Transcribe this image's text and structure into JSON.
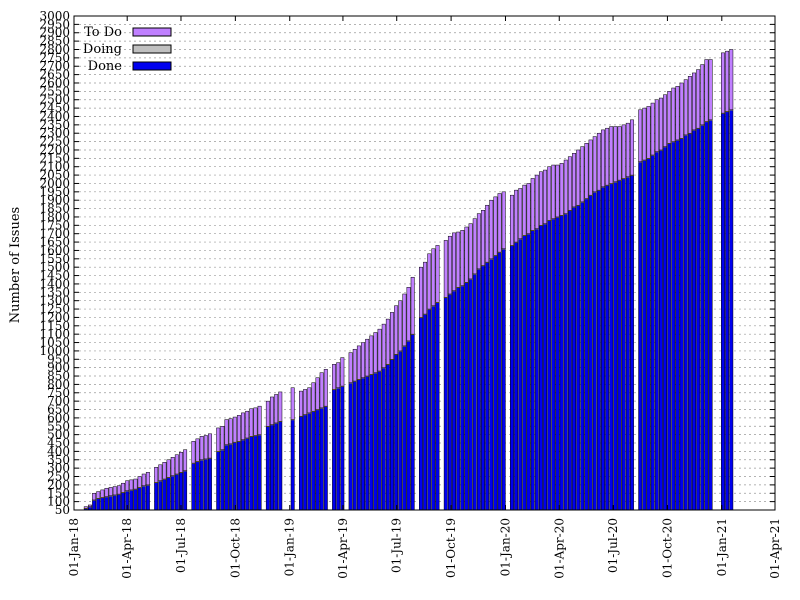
{
  "chart_data": {
    "type": "bar",
    "stacked": true,
    "title": "",
    "xlabel": "",
    "ylabel": "Number of Issues",
    "ylim": [
      50,
      3000
    ],
    "y_ticks": [
      50,
      100,
      150,
      200,
      250,
      300,
      350,
      400,
      450,
      500,
      550,
      600,
      650,
      700,
      750,
      800,
      850,
      900,
      950,
      1000,
      1050,
      1100,
      1150,
      1200,
      1250,
      1300,
      1350,
      1400,
      1450,
      1500,
      1550,
      1600,
      1650,
      1700,
      1750,
      1800,
      1850,
      1900,
      1950,
      2000,
      2050,
      2100,
      2150,
      2200,
      2250,
      2300,
      2350,
      2400,
      2450,
      2500,
      2550,
      2600,
      2650,
      2700,
      2750,
      2800,
      2850,
      2900,
      2950,
      3000
    ],
    "y_tick_labels": [
      "50",
      "100",
      "150",
      "200",
      "250",
      "300",
      "350",
      "400",
      "450",
      "500",
      "550",
      "600",
      "650",
      "700",
      "750",
      "800",
      "850",
      "900",
      "950",
      "1000",
      "1050",
      "1100",
      "1150",
      "1200",
      "1250",
      "1300",
      "1350",
      "1400",
      "1450",
      "1500",
      "1550",
      "1600",
      "1650",
      "1700",
      "1750",
      "1800",
      "1850",
      "1900",
      "1950",
      "2000",
      "2050",
      "2100",
      "2150",
      "2200",
      "2250",
      "2300",
      "2350",
      "2400",
      "2450",
      "2500",
      "2550",
      "2600",
      "2650",
      "2700",
      "2750",
      "2800",
      "2850",
      "2900",
      "2950",
      "3000"
    ],
    "x_range": [
      "2018-01-01",
      "2021-04-01"
    ],
    "x_ticks": [
      "2018-01-01",
      "2018-04-01",
      "2018-07-01",
      "2018-10-01",
      "2019-01-01",
      "2019-04-01",
      "2019-07-01",
      "2019-10-01",
      "2020-01-01",
      "2020-04-01",
      "2020-07-01",
      "2020-10-01",
      "2021-01-01",
      "2021-04-01"
    ],
    "x_tick_labels": [
      "01-Jan-18",
      "01-Apr-18",
      "01-Jul-18",
      "01-Oct-18",
      "01-Jan-19",
      "01-Apr-19",
      "01-Jul-19",
      "01-Oct-19",
      "01-Jan-20",
      "01-Apr-20",
      "01-Jul-20",
      "01-Oct-20",
      "01-Jan-21",
      "01-Apr-21"
    ],
    "legend_position": "top-left",
    "grid": true,
    "series": [
      {
        "name": "To Do",
        "color": "#c080ff"
      },
      {
        "name": "Doing",
        "color": "#c0c0c0"
      },
      {
        "name": "Done",
        "color": "#0000ee"
      }
    ],
    "points": [
      {
        "x": "2018-01-21",
        "done": 60,
        "doing": 0,
        "todo": 10
      },
      {
        "x": "2018-01-28",
        "done": 70,
        "doing": 0,
        "todo": 10
      },
      {
        "x": "2018-02-04",
        "done": 110,
        "doing": 0,
        "todo": 40
      },
      {
        "x": "2018-02-11",
        "done": 120,
        "doing": 0,
        "todo": 40
      },
      {
        "x": "2018-02-18",
        "done": 125,
        "doing": 0,
        "todo": 45
      },
      {
        "x": "2018-02-25",
        "done": 130,
        "doing": 0,
        "todo": 50
      },
      {
        "x": "2018-03-04",
        "done": 135,
        "doing": 0,
        "todo": 50
      },
      {
        "x": "2018-03-11",
        "done": 140,
        "doing": 0,
        "todo": 50
      },
      {
        "x": "2018-03-18",
        "done": 145,
        "doing": 0,
        "todo": 50
      },
      {
        "x": "2018-03-25",
        "done": 155,
        "doing": 0,
        "todo": 55
      },
      {
        "x": "2018-04-01",
        "done": 165,
        "doing": 0,
        "todo": 60
      },
      {
        "x": "2018-04-08",
        "done": 170,
        "doing": 0,
        "todo": 60
      },
      {
        "x": "2018-04-15",
        "done": 175,
        "doing": 0,
        "todo": 60
      },
      {
        "x": "2018-04-22",
        "done": 185,
        "doing": 0,
        "todo": 65
      },
      {
        "x": "2018-04-29",
        "done": 195,
        "doing": 0,
        "todo": 70
      },
      {
        "x": "2018-05-06",
        "done": 200,
        "doing": 0,
        "todo": 75
      },
      {
        "x": "2018-05-20",
        "done": 215,
        "doing": 0,
        "todo": 90
      },
      {
        "x": "2018-05-27",
        "done": 225,
        "doing": 0,
        "todo": 95
      },
      {
        "x": "2018-06-03",
        "done": 235,
        "doing": 0,
        "todo": 100
      },
      {
        "x": "2018-06-10",
        "done": 245,
        "doing": 0,
        "todo": 105
      },
      {
        "x": "2018-06-17",
        "done": 255,
        "doing": 0,
        "todo": 110
      },
      {
        "x": "2018-06-24",
        "done": 265,
        "doing": 0,
        "todo": 115
      },
      {
        "x": "2018-07-01",
        "done": 275,
        "doing": 0,
        "todo": 120
      },
      {
        "x": "2018-07-08",
        "done": 285,
        "doing": 0,
        "todo": 125
      },
      {
        "x": "2018-07-22",
        "done": 330,
        "doing": 0,
        "todo": 130
      },
      {
        "x": "2018-07-29",
        "done": 340,
        "doing": 0,
        "todo": 135
      },
      {
        "x": "2018-08-05",
        "done": 350,
        "doing": 0,
        "todo": 140
      },
      {
        "x": "2018-08-12",
        "done": 355,
        "doing": 0,
        "todo": 140
      },
      {
        "x": "2018-08-19",
        "done": 360,
        "doing": 0,
        "todo": 145
      },
      {
        "x": "2018-09-02",
        "done": 400,
        "doing": 0,
        "todo": 140
      },
      {
        "x": "2018-09-09",
        "done": 410,
        "doing": 0,
        "todo": 140
      },
      {
        "x": "2018-09-16",
        "done": 440,
        "doing": 0,
        "todo": 150
      },
      {
        "x": "2018-09-23",
        "done": 445,
        "doing": 0,
        "todo": 150
      },
      {
        "x": "2018-09-30",
        "done": 455,
        "doing": 0,
        "todo": 150
      },
      {
        "x": "2018-10-07",
        "done": 460,
        "doing": 0,
        "todo": 155
      },
      {
        "x": "2018-10-14",
        "done": 470,
        "doing": 0,
        "todo": 160
      },
      {
        "x": "2018-10-21",
        "done": 480,
        "doing": 0,
        "todo": 160
      },
      {
        "x": "2018-10-28",
        "done": 490,
        "doing": 0,
        "todo": 165
      },
      {
        "x": "2018-11-04",
        "done": 495,
        "doing": 0,
        "todo": 165
      },
      {
        "x": "2018-11-11",
        "done": 500,
        "doing": 0,
        "todo": 170
      },
      {
        "x": "2018-11-25",
        "done": 550,
        "doing": 0,
        "todo": 150
      },
      {
        "x": "2018-12-02",
        "done": 560,
        "doing": 0,
        "todo": 165
      },
      {
        "x": "2018-12-09",
        "done": 570,
        "doing": 0,
        "todo": 170
      },
      {
        "x": "2018-12-16",
        "done": 580,
        "doing": 0,
        "todo": 175
      },
      {
        "x": "2019-01-06",
        "done": 590,
        "doing": 0,
        "todo": 190
      },
      {
        "x": "2019-01-20",
        "done": 610,
        "doing": 0,
        "todo": 150
      },
      {
        "x": "2019-01-27",
        "done": 620,
        "doing": 0,
        "todo": 150
      },
      {
        "x": "2019-02-03",
        "done": 630,
        "doing": 0,
        "todo": 150
      },
      {
        "x": "2019-02-10",
        "done": 640,
        "doing": 0,
        "todo": 170
      },
      {
        "x": "2019-02-17",
        "done": 650,
        "doing": 0,
        "todo": 190
      },
      {
        "x": "2019-02-24",
        "done": 660,
        "doing": 0,
        "todo": 210
      },
      {
        "x": "2019-03-03",
        "done": 670,
        "doing": 0,
        "todo": 220
      },
      {
        "x": "2019-03-17",
        "done": 770,
        "doing": 0,
        "todo": 150
      },
      {
        "x": "2019-03-24",
        "done": 780,
        "doing": 0,
        "todo": 150
      },
      {
        "x": "2019-03-31",
        "done": 790,
        "doing": 0,
        "todo": 170
      },
      {
        "x": "2019-04-14",
        "done": 810,
        "doing": 0,
        "todo": 180
      },
      {
        "x": "2019-04-21",
        "done": 820,
        "doing": 0,
        "todo": 190
      },
      {
        "x": "2019-04-28",
        "done": 830,
        "doing": 0,
        "todo": 200
      },
      {
        "x": "2019-05-05",
        "done": 840,
        "doing": 0,
        "todo": 210
      },
      {
        "x": "2019-05-12",
        "done": 850,
        "doing": 0,
        "todo": 220
      },
      {
        "x": "2019-05-19",
        "done": 860,
        "doing": 0,
        "todo": 230
      },
      {
        "x": "2019-05-26",
        "done": 870,
        "doing": 0,
        "todo": 240
      },
      {
        "x": "2019-06-02",
        "done": 880,
        "doing": 0,
        "todo": 250
      },
      {
        "x": "2019-06-09",
        "done": 900,
        "doing": 0,
        "todo": 260
      },
      {
        "x": "2019-06-16",
        "done": 920,
        "doing": 0,
        "todo": 270
      },
      {
        "x": "2019-06-23",
        "done": 950,
        "doing": 0,
        "todo": 280
      },
      {
        "x": "2019-06-30",
        "done": 980,
        "doing": 0,
        "todo": 290
      },
      {
        "x": "2019-07-07",
        "done": 1000,
        "doing": 0,
        "todo": 300
      },
      {
        "x": "2019-07-14",
        "done": 1030,
        "doing": 0,
        "todo": 310
      },
      {
        "x": "2019-07-21",
        "done": 1060,
        "doing": 0,
        "todo": 320
      },
      {
        "x": "2019-07-28",
        "done": 1100,
        "doing": 0,
        "todo": 340
      },
      {
        "x": "2019-08-11",
        "done": 1200,
        "doing": 0,
        "todo": 300
      },
      {
        "x": "2019-08-18",
        "done": 1220,
        "doing": 0,
        "todo": 310
      },
      {
        "x": "2019-08-25",
        "done": 1250,
        "doing": 0,
        "todo": 330
      },
      {
        "x": "2019-09-01",
        "done": 1270,
        "doing": 0,
        "todo": 340
      },
      {
        "x": "2019-09-08",
        "done": 1290,
        "doing": 0,
        "todo": 340
      },
      {
        "x": "2019-09-22",
        "done": 1320,
        "doing": 0,
        "todo": 340
      },
      {
        "x": "2019-09-29",
        "done": 1340,
        "doing": 0,
        "todo": 345
      },
      {
        "x": "2019-10-06",
        "done": 1360,
        "doing": 0,
        "todo": 345
      },
      {
        "x": "2019-10-13",
        "done": 1380,
        "doing": 0,
        "todo": 330
      },
      {
        "x": "2019-10-20",
        "done": 1390,
        "doing": 0,
        "todo": 330
      },
      {
        "x": "2019-10-27",
        "done": 1410,
        "doing": 0,
        "todo": 330
      },
      {
        "x": "2019-11-03",
        "done": 1430,
        "doing": 0,
        "todo": 330
      },
      {
        "x": "2019-11-10",
        "done": 1460,
        "doing": 0,
        "todo": 330
      },
      {
        "x": "2019-11-17",
        "done": 1490,
        "doing": 0,
        "todo": 330
      },
      {
        "x": "2019-11-24",
        "done": 1510,
        "doing": 0,
        "todo": 330
      },
      {
        "x": "2019-12-01",
        "done": 1530,
        "doing": 0,
        "todo": 340
      },
      {
        "x": "2019-12-08",
        "done": 1550,
        "doing": 0,
        "todo": 350
      },
      {
        "x": "2019-12-15",
        "done": 1570,
        "doing": 0,
        "todo": 350
      },
      {
        "x": "2019-12-22",
        "done": 1590,
        "doing": 0,
        "todo": 350
      },
      {
        "x": "2019-12-29",
        "done": 1610,
        "doing": 0,
        "todo": 340
      },
      {
        "x": "2020-01-12",
        "done": 1630,
        "doing": 0,
        "todo": 300
      },
      {
        "x": "2020-01-19",
        "done": 1650,
        "doing": 0,
        "todo": 310
      },
      {
        "x": "2020-01-26",
        "done": 1670,
        "doing": 0,
        "todo": 300
      },
      {
        "x": "2020-02-02",
        "done": 1690,
        "doing": 0,
        "todo": 300
      },
      {
        "x": "2020-02-09",
        "done": 1700,
        "doing": 0,
        "todo": 300
      },
      {
        "x": "2020-02-16",
        "done": 1720,
        "doing": 0,
        "todo": 310
      },
      {
        "x": "2020-02-23",
        "done": 1730,
        "doing": 0,
        "todo": 320
      },
      {
        "x": "2020-03-01",
        "done": 1750,
        "doing": 0,
        "todo": 320
      },
      {
        "x": "2020-03-08",
        "done": 1760,
        "doing": 0,
        "todo": 320
      },
      {
        "x": "2020-03-15",
        "done": 1780,
        "doing": 0,
        "todo": 320
      },
      {
        "x": "2020-03-22",
        "done": 1790,
        "doing": 0,
        "todo": 320
      },
      {
        "x": "2020-03-29",
        "done": 1800,
        "doing": 0,
        "todo": 310
      },
      {
        "x": "2020-04-05",
        "done": 1810,
        "doing": 0,
        "todo": 310
      },
      {
        "x": "2020-04-12",
        "done": 1820,
        "doing": 0,
        "todo": 320
      },
      {
        "x": "2020-04-19",
        "done": 1840,
        "doing": 0,
        "todo": 320
      },
      {
        "x": "2020-04-26",
        "done": 1860,
        "doing": 0,
        "todo": 320
      },
      {
        "x": "2020-05-03",
        "done": 1870,
        "doing": 0,
        "todo": 330
      },
      {
        "x": "2020-05-10",
        "done": 1890,
        "doing": 0,
        "todo": 330
      },
      {
        "x": "2020-05-17",
        "done": 1910,
        "doing": 0,
        "todo": 330
      },
      {
        "x": "2020-05-24",
        "done": 1930,
        "doing": 0,
        "todo": 330
      },
      {
        "x": "2020-05-31",
        "done": 1950,
        "doing": 0,
        "todo": 330
      },
      {
        "x": "2020-06-07",
        "done": 1960,
        "doing": 0,
        "todo": 340
      },
      {
        "x": "2020-06-14",
        "done": 1980,
        "doing": 0,
        "todo": 340
      },
      {
        "x": "2020-06-21",
        "done": 1990,
        "doing": 0,
        "todo": 340
      },
      {
        "x": "2020-06-28",
        "done": 2000,
        "doing": 0,
        "todo": 340
      },
      {
        "x": "2020-07-05",
        "done": 2010,
        "doing": 0,
        "todo": 330
      },
      {
        "x": "2020-07-12",
        "done": 2020,
        "doing": 0,
        "todo": 320
      },
      {
        "x": "2020-07-19",
        "done": 2030,
        "doing": 0,
        "todo": 320
      },
      {
        "x": "2020-07-26",
        "done": 2040,
        "doing": 0,
        "todo": 320
      },
      {
        "x": "2020-08-02",
        "done": 2050,
        "doing": 0,
        "todo": 330
      },
      {
        "x": "2020-08-16",
        "done": 2130,
        "doing": 0,
        "todo": 310
      },
      {
        "x": "2020-08-23",
        "done": 2140,
        "doing": 0,
        "todo": 310
      },
      {
        "x": "2020-08-30",
        "done": 2150,
        "doing": 0,
        "todo": 310
      },
      {
        "x": "2020-09-06",
        "done": 2170,
        "doing": 0,
        "todo": 310
      },
      {
        "x": "2020-09-13",
        "done": 2190,
        "doing": 0,
        "todo": 310
      },
      {
        "x": "2020-09-20",
        "done": 2200,
        "doing": 0,
        "todo": 310
      },
      {
        "x": "2020-09-27",
        "done": 2220,
        "doing": 0,
        "todo": 310
      },
      {
        "x": "2020-10-04",
        "done": 2240,
        "doing": 0,
        "todo": 310
      },
      {
        "x": "2020-10-11",
        "done": 2250,
        "doing": 0,
        "todo": 320
      },
      {
        "x": "2020-10-18",
        "done": 2260,
        "doing": 0,
        "todo": 320
      },
      {
        "x": "2020-10-25",
        "done": 2270,
        "doing": 0,
        "todo": 330
      },
      {
        "x": "2020-11-01",
        "done": 2290,
        "doing": 0,
        "todo": 330
      },
      {
        "x": "2020-11-08",
        "done": 2300,
        "doing": 0,
        "todo": 340
      },
      {
        "x": "2020-11-15",
        "done": 2320,
        "doing": 0,
        "todo": 340
      },
      {
        "x": "2020-11-22",
        "done": 2330,
        "doing": 0,
        "todo": 350
      },
      {
        "x": "2020-11-29",
        "done": 2350,
        "doing": 0,
        "todo": 360
      },
      {
        "x": "2020-12-06",
        "done": 2370,
        "doing": 0,
        "todo": 370
      },
      {
        "x": "2020-12-13",
        "done": 2380,
        "doing": 0,
        "todo": 360
      },
      {
        "x": "2021-01-03",
        "done": 2420,
        "doing": 0,
        "todo": 360
      },
      {
        "x": "2021-01-10",
        "done": 2430,
        "doing": 0,
        "todo": 360
      },
      {
        "x": "2021-01-17",
        "done": 2440,
        "doing": 0,
        "todo": 360
      }
    ]
  }
}
